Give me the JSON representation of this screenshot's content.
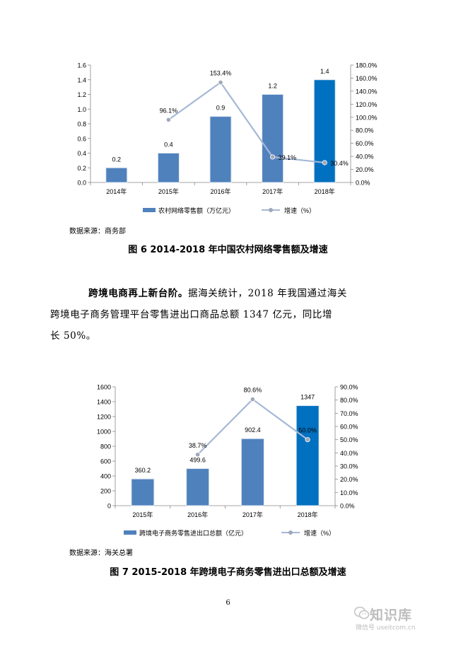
{
  "chart_data": [
    {
      "type": "bar",
      "categories": [
        "2014年",
        "2015年",
        "2016年",
        "2017年",
        "2018年"
      ],
      "series": [
        {
          "name": "农村网络零售额（万亿元）",
          "type": "bar",
          "axis": "left",
          "values": [
            0.2,
            0.4,
            0.9,
            1.2,
            1.4
          ]
        },
        {
          "name": "增速（%）",
          "type": "line",
          "axis": "right",
          "values": [
            null,
            96.1,
            153.4,
            39.1,
            30.4
          ]
        }
      ],
      "bar_labels": [
        "0.2",
        "0.4",
        "0.9",
        "1.2",
        "1.4"
      ],
      "line_labels": [
        "",
        "96.1%",
        "153.4%",
        "39.1%",
        "30.4%"
      ],
      "ylim": [
        0,
        1.6
      ],
      "yticks": [
        "0.0",
        "0.2",
        "0.4",
        "0.6",
        "0.8",
        "1.0",
        "1.2",
        "1.4",
        "1.6"
      ],
      "y2lim": [
        0,
        180
      ],
      "y2ticks": [
        "0.0%",
        "20.0%",
        "40.0%",
        "60.0%",
        "80.0%",
        "100.0%",
        "120.0%",
        "140.0%",
        "160.0%",
        "180.0%"
      ],
      "highlight_category": "2018年",
      "colors": {
        "bar": "#4f81bd",
        "bar_highlight": "#0070c0",
        "line": "#a5b8d6",
        "marker": "#a0a8b8"
      },
      "legend": "bottom"
    },
    {
      "type": "bar",
      "categories": [
        "2015年",
        "2016年",
        "2017年",
        "2018年"
      ],
      "series": [
        {
          "name": "跨境电子商务零售进出口总额（亿元）",
          "type": "bar",
          "axis": "left",
          "values": [
            360.2,
            499.6,
            902.4,
            1347
          ]
        },
        {
          "name": "增速（%）",
          "type": "line",
          "axis": "right",
          "values": [
            null,
            38.7,
            80.6,
            50.0
          ]
        }
      ],
      "bar_labels": [
        "360.2",
        "499.6",
        "902.4",
        "1347"
      ],
      "line_labels": [
        "",
        "38.7%",
        "80.6%",
        "50.0%"
      ],
      "ylim": [
        0,
        1600
      ],
      "yticks": [
        "0",
        "200",
        "400",
        "600",
        "800",
        "1000",
        "1200",
        "1400",
        "1600"
      ],
      "y2lim": [
        0,
        90
      ],
      "y2ticks": [
        "0.0%",
        "10.0%",
        "20.0%",
        "30.0%",
        "40.0%",
        "50.0%",
        "60.0%",
        "70.0%",
        "80.0%",
        "90.0%"
      ],
      "highlight_category": "2018年",
      "colors": {
        "bar": "#4f81bd",
        "bar_highlight": "#0070c0",
        "line": "#a5b8d6",
        "marker": "#a0a8b8"
      },
      "legend": "bottom"
    }
  ],
  "figure6": {
    "source": "数据来源：商务部",
    "caption": "图 6  2014-2018 年中国农村网络零售额及增速"
  },
  "paragraph": {
    "lead": "跨境电商再上新台阶。",
    "line1": "据海关统计，2018 年我国通过海关",
    "line2": "跨境电子商务管理平台零售进出口商品总额 1347 亿元，同比增",
    "line3": "长 50%。"
  },
  "figure7": {
    "source": "数据来源：海关总署",
    "caption": "图 7  2015-2018 年跨境电子商务零售进出口总额及增速"
  },
  "page_number": "6",
  "watermark": {
    "logo": "知识库",
    "subtitle": "微信号 useitcom.cn",
    "icon": "wechat-icon"
  }
}
